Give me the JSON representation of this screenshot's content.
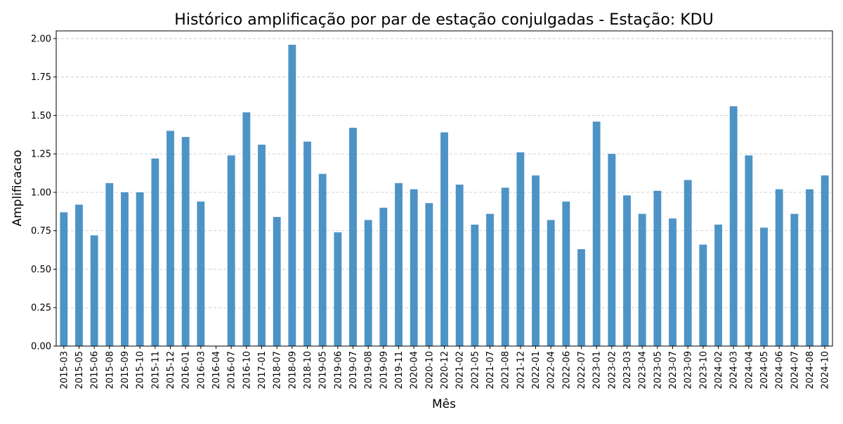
{
  "chart_data": {
    "type": "bar",
    "title": "Histórico amplificação por par de estação conjulgadas - Estação: KDU",
    "xlabel": "Mês",
    "ylabel": "Amplificacao",
    "ylim": [
      0,
      2.05
    ],
    "yticks": [
      0,
      0.25,
      0.5,
      0.75,
      1.0,
      1.25,
      1.5,
      1.75,
      2.0
    ],
    "ytick_labels": [
      "0.00",
      "0.25",
      "0.50",
      "0.75",
      "1.00",
      "1.25",
      "1.50",
      "1.75",
      "2.00"
    ],
    "grid": "y-dashed",
    "categories": [
      "2015-03",
      "2015-05",
      "2015-06",
      "2015-08",
      "2015-09",
      "2015-10",
      "2015-11",
      "2015-12",
      "2016-01",
      "2016-03",
      "2016-04",
      "2016-07",
      "2016-10",
      "2017-01",
      "2018-07",
      "2018-09",
      "2018-10",
      "2019-05",
      "2019-06",
      "2019-07",
      "2019-08",
      "2019-09",
      "2019-11",
      "2020-04",
      "2020-10",
      "2020-12",
      "2021-02",
      "2021-05",
      "2021-07",
      "2021-08",
      "2021-12",
      "2022-01",
      "2022-04",
      "2022-06",
      "2022-07",
      "2023-01",
      "2023-02",
      "2023-03",
      "2023-04",
      "2023-05",
      "2023-07",
      "2023-09",
      "2023-10",
      "2024-02",
      "2024-03",
      "2024-04",
      "2024-05",
      "2024-06",
      "2024-07",
      "2024-08",
      "2024-10"
    ],
    "values": [
      0.87,
      0.92,
      0.72,
      1.06,
      1.0,
      1.0,
      1.22,
      1.4,
      1.36,
      0.94,
      0.0,
      1.24,
      1.52,
      1.31,
      0.84,
      1.96,
      1.33,
      1.12,
      0.74,
      1.42,
      0.82,
      0.9,
      1.06,
      1.02,
      0.93,
      1.39,
      1.05,
      0.79,
      0.86,
      1.03,
      1.26,
      1.11,
      0.82,
      0.94,
      0.63,
      1.46,
      1.25,
      0.98,
      0.86,
      1.01,
      0.83,
      1.08,
      0.66,
      0.79,
      1.56,
      1.24,
      0.77,
      1.02,
      0.86,
      1.02,
      1.11
    ],
    "colors": {
      "bar": "#3a87c0",
      "grid": "#b0b0b0"
    }
  }
}
